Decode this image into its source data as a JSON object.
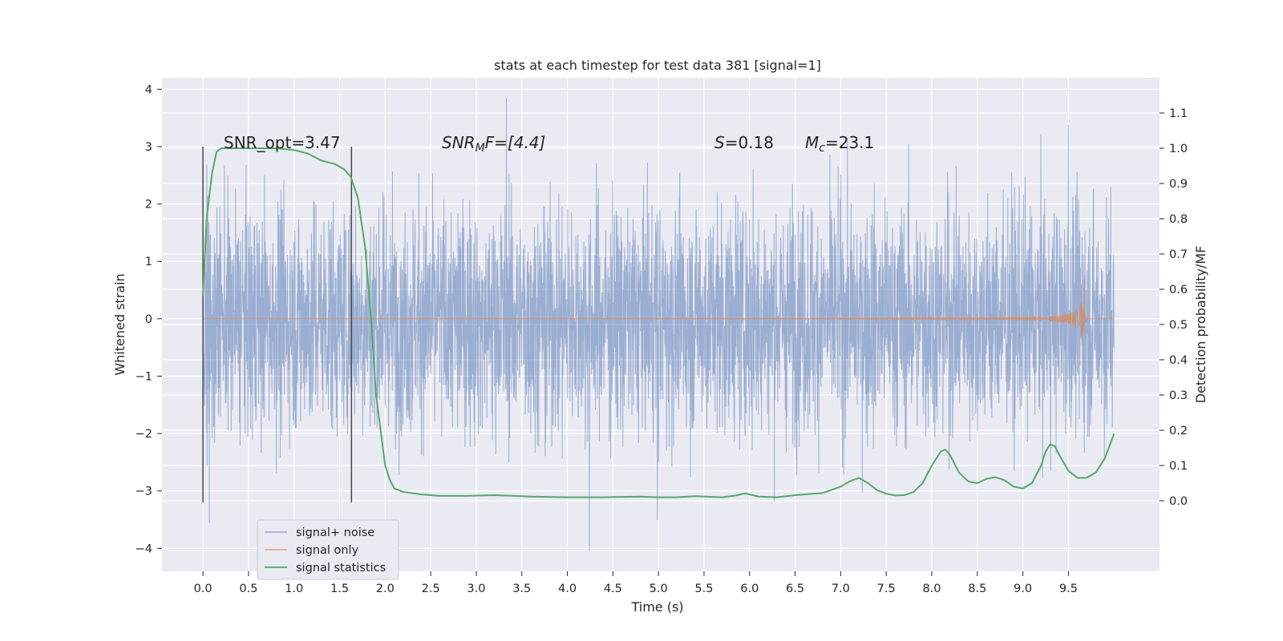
{
  "chart_data": {
    "type": "line",
    "title": "stats at each timestep for test data 381 [signal=1]",
    "xlabel": "Time (s)",
    "ylabel": "Whitened strain",
    "y2label": "Detection probability/MF",
    "xlim": [
      -0.45,
      10.5
    ],
    "ylim": [
      -4.4,
      4.2
    ],
    "y2lim": [
      -0.2,
      1.2
    ],
    "x_ticks": [
      "0.0",
      "0.5",
      "1.0",
      "1.5",
      "2.0",
      "2.5",
      "3.0",
      "3.5",
      "4.0",
      "4.5",
      "5.0",
      "5.5",
      "6.0",
      "6.5",
      "7.0",
      "7.5",
      "8.0",
      "8.5",
      "9.0",
      "9.5"
    ],
    "y_ticks": [
      "4",
      "3",
      "2",
      "1",
      "0",
      "−1",
      "−2",
      "−3",
      "−4"
    ],
    "y2_ticks": [
      "1.1",
      "1.0",
      "0.9",
      "0.8",
      "0.7",
      "0.6",
      "0.5",
      "0.4",
      "0.3",
      "0.2",
      "0.1",
      "0.0"
    ],
    "grid": true,
    "legend_position": "lower-left",
    "annotations": {
      "snr_opt": "SNR_opt=3.47",
      "snr_mf_main": "SNR",
      "snr_mf_sub": "M",
      "snr_mf_rest": "F=[4.4]",
      "s_label": "S",
      "s_value": "=0.18",
      "mc_label": "M",
      "mc_sub": "c",
      "mc_value": "=23.1"
    },
    "vertical_markers": {
      "x": [
        0.0,
        1.63
      ],
      "y_range": [
        -3.2,
        3.0
      ]
    },
    "series": [
      {
        "name": "signal+ noise",
        "axis": "left",
        "color": "#4c72b0",
        "description_range": [
          -4.05,
          3.85
        ],
        "x_range": [
          0.0,
          10.0
        ],
        "typical_amplitude": 1.0,
        "peaks": [
          {
            "x": 0.07,
            "y": -3.55
          },
          {
            "x": 3.33,
            "y": 3.85
          },
          {
            "x": 4.24,
            "y": -4.05
          },
          {
            "x": 4.99,
            "y": -3.5
          },
          {
            "x": 9.5,
            "y": 3.38
          }
        ]
      },
      {
        "name": "signal only",
        "axis": "left",
        "color": "#dd8452",
        "x_range": [
          0.0,
          10.0
        ],
        "chirp_peak_time": 9.67,
        "chirp_peak_amplitude": 0.7
      },
      {
        "name": "signal statistics",
        "axis": "right",
        "color": "#55a868",
        "x": [
          0.0,
          0.04,
          0.1,
          0.15,
          0.2,
          0.3,
          0.5,
          0.8,
          1.0,
          1.15,
          1.3,
          1.45,
          1.55,
          1.62,
          1.7,
          1.78,
          1.85,
          1.9,
          1.95,
          2.0,
          2.05,
          2.1,
          2.2,
          2.4,
          2.6,
          2.9,
          3.2,
          3.6,
          4.0,
          4.4,
          4.8,
          5.0,
          5.2,
          5.4,
          5.7,
          5.85,
          5.95,
          6.1,
          6.3,
          6.5,
          6.8,
          7.0,
          7.1,
          7.2,
          7.3,
          7.4,
          7.5,
          7.6,
          7.7,
          7.8,
          7.9,
          8.0,
          8.1,
          8.15,
          8.2,
          8.3,
          8.4,
          8.5,
          8.6,
          8.7,
          8.8,
          8.9,
          9.0,
          9.1,
          9.2,
          9.25,
          9.3,
          9.35,
          9.4,
          9.5,
          9.6,
          9.7,
          9.8,
          9.9,
          10.0
        ],
        "y": [
          0.58,
          0.8,
          0.93,
          0.99,
          1.0,
          1.0,
          1.0,
          1.0,
          0.995,
          0.985,
          0.965,
          0.955,
          0.94,
          0.92,
          0.86,
          0.72,
          0.5,
          0.3,
          0.2,
          0.1,
          0.06,
          0.035,
          0.025,
          0.018,
          0.014,
          0.014,
          0.016,
          0.012,
          0.01,
          0.01,
          0.012,
          0.01,
          0.01,
          0.013,
          0.01,
          0.015,
          0.021,
          0.012,
          0.01,
          0.016,
          0.022,
          0.04,
          0.055,
          0.065,
          0.05,
          0.03,
          0.02,
          0.015,
          0.016,
          0.025,
          0.05,
          0.1,
          0.14,
          0.145,
          0.13,
          0.08,
          0.055,
          0.05,
          0.062,
          0.067,
          0.058,
          0.04,
          0.035,
          0.05,
          0.1,
          0.14,
          0.16,
          0.155,
          0.13,
          0.085,
          0.065,
          0.065,
          0.08,
          0.12,
          0.19
        ]
      }
    ]
  }
}
